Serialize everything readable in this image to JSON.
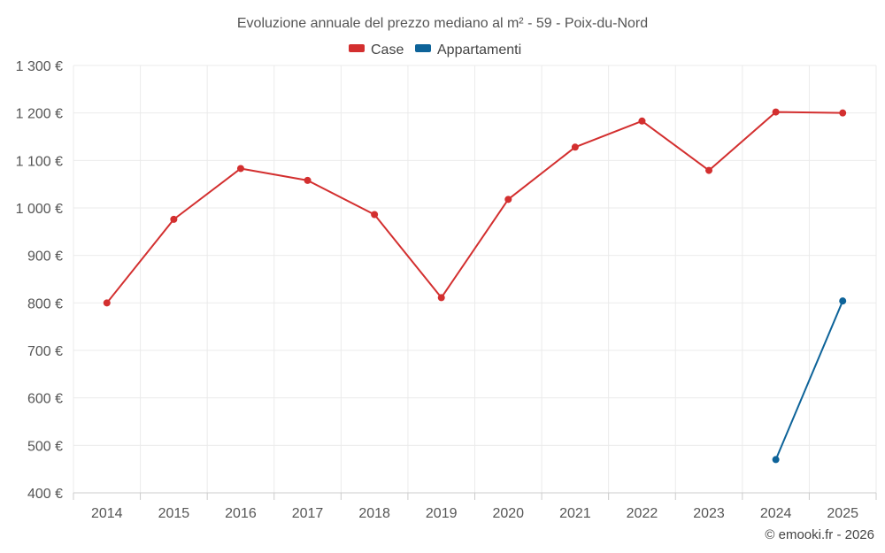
{
  "chart_data": {
    "type": "line",
    "title": "Evoluzione annuale del prezzo mediano al m² - 59 - Poix-du-Nord",
    "categories": [
      "2014",
      "2015",
      "2016",
      "2017",
      "2018",
      "2019",
      "2020",
      "2021",
      "2022",
      "2023",
      "2024",
      "2025"
    ],
    "series": [
      {
        "name": "Case",
        "color": "#d32f2f",
        "values": [
          800,
          976,
          1083,
          1058,
          986,
          811,
          1018,
          1128,
          1183,
          1079,
          1202,
          1200
        ]
      },
      {
        "name": "Appartamenti",
        "color": "#0d6399",
        "values": [
          null,
          null,
          null,
          null,
          null,
          null,
          null,
          null,
          null,
          null,
          470,
          804
        ]
      }
    ],
    "ylim": [
      400,
      1300
    ],
    "yticks": [
      400,
      500,
      600,
      700,
      800,
      900,
      1000,
      1100,
      1200,
      1300
    ],
    "ytick_labels": [
      "400 €",
      "500 €",
      "600 €",
      "700 €",
      "800 €",
      "900 €",
      "1 000 €",
      "1 100 €",
      "1 200 €",
      "1 300 €"
    ],
    "grid": true,
    "legend_position": "top-center",
    "credit": "© emooki.fr - 2026"
  }
}
